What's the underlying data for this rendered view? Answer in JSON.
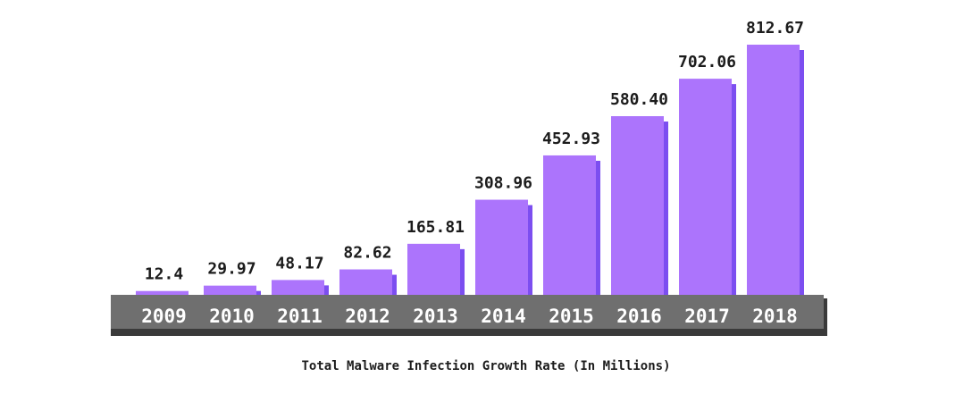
{
  "chart_data": {
    "type": "bar",
    "title": "Total Malware Infection Growth Rate (In Millions)",
    "categories": [
      "2009",
      "2010",
      "2011",
      "2012",
      "2013",
      "2014",
      "2015",
      "2016",
      "2017",
      "2018"
    ],
    "values": [
      12.4,
      29.97,
      48.17,
      82.62,
      165.81,
      308.96,
      452.93,
      580.4,
      702.06,
      812.67
    ],
    "value_labels": [
      "12.4",
      "29.97",
      "48.17",
      "82.62",
      "165.81",
      "308.96",
      "452.93",
      "580.40",
      "702.06",
      "812.67"
    ],
    "ylim": [
      0,
      850
    ],
    "grid": false,
    "legend": "none",
    "colors": {
      "bar": "#ac74fc",
      "bar_shadow": "#7c4ef0",
      "axis_band": "#6f6f6f",
      "axis_band_shadow": "#3a3a3a",
      "tick_text": "#ffffff",
      "label_text": "#1c1c1c"
    }
  }
}
